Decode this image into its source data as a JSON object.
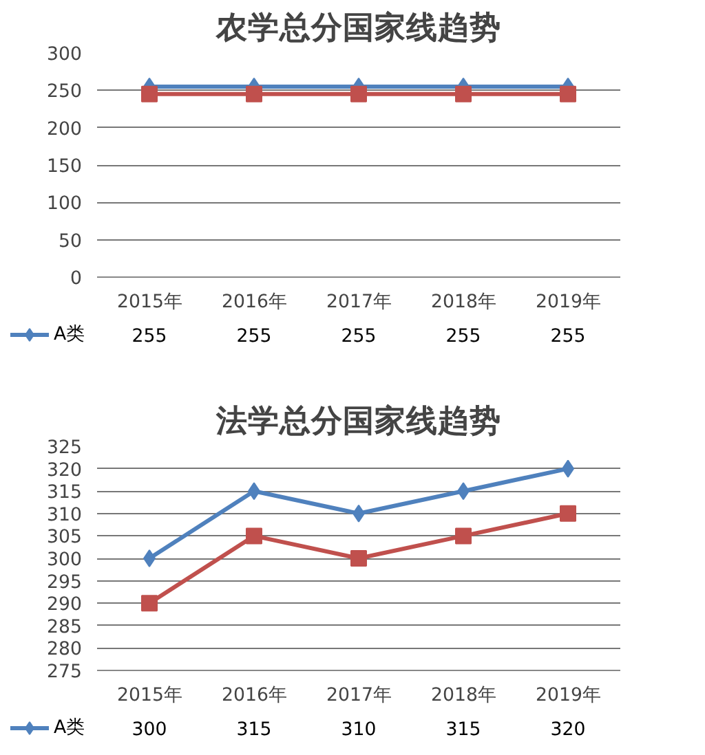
{
  "chart_data": [
    {
      "type": "line",
      "title": "农学总分国家线趋势",
      "categories": [
        "2015年",
        "2016年",
        "2017年",
        "2018年",
        "2019年"
      ],
      "ylim": [
        0,
        300
      ],
      "yticks": [
        0,
        50,
        100,
        150,
        200,
        250,
        300
      ],
      "grid": "y",
      "series": [
        {
          "name": "A类",
          "color": "#4f81bd",
          "marker": "diamond",
          "values": [
            255,
            255,
            255,
            255,
            255
          ],
          "value_labels": [
            "255",
            "255",
            "255",
            "255",
            "255"
          ]
        },
        {
          "color": "#c0504d",
          "marker": "square",
          "values": [
            245,
            245,
            245,
            245,
            245
          ]
        }
      ]
    },
    {
      "type": "line",
      "title": "法学总分国家线趋势",
      "categories": [
        "2015年",
        "2016年",
        "2017年",
        "2018年",
        "2019年"
      ],
      "ylim": [
        275,
        325
      ],
      "yticks": [
        275,
        280,
        285,
        290,
        295,
        300,
        305,
        310,
        315,
        320,
        325
      ],
      "grid": "y",
      "series": [
        {
          "name": "A类",
          "color": "#4f81bd",
          "marker": "diamond",
          "values": [
            300,
            315,
            310,
            315,
            320
          ],
          "value_labels": [
            "300",
            "315",
            "310",
            "315",
            "320"
          ]
        },
        {
          "color": "#c0504d",
          "marker": "square",
          "values": [
            290,
            305,
            300,
            305,
            310
          ]
        }
      ]
    }
  ]
}
